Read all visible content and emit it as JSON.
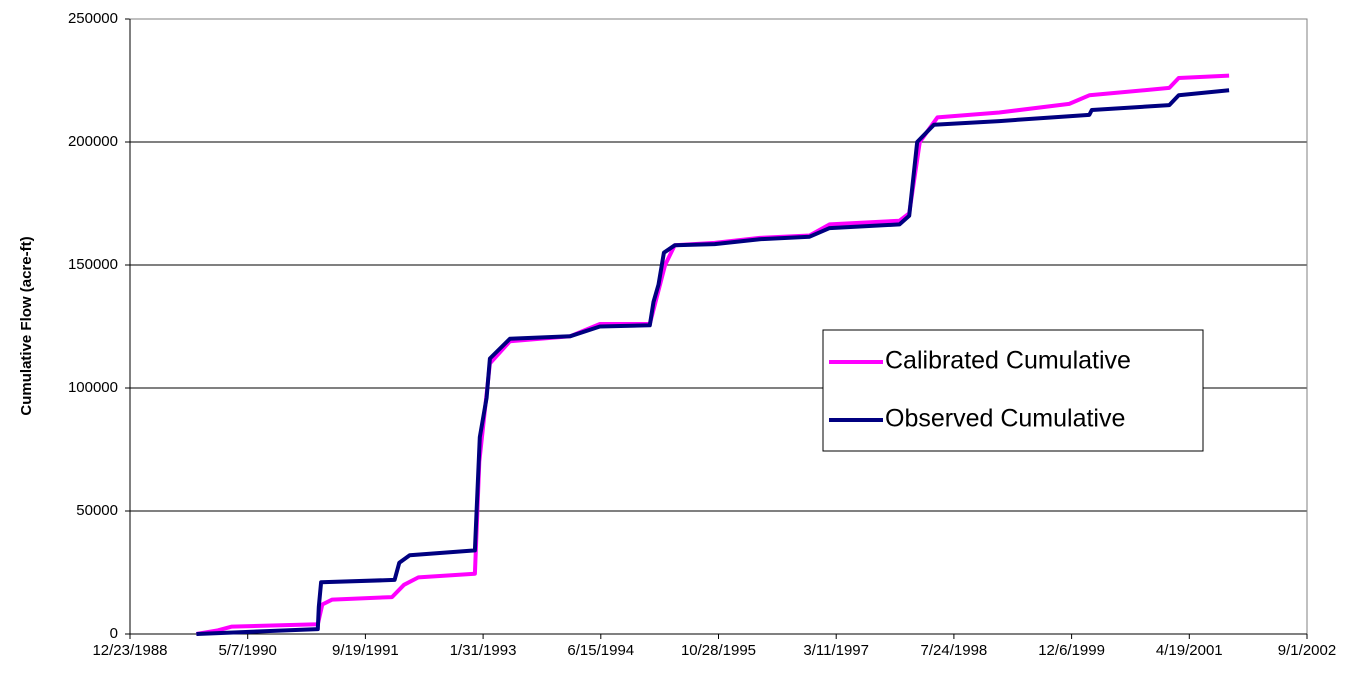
{
  "chart_data": {
    "type": "line",
    "y_axis_label": "Cumulative Flow (acre-ft)",
    "xlim": [
      "12/23/1988",
      "9/1/2002"
    ],
    "xticks": [
      "12/23/1988",
      "5/7/1990",
      "9/19/1991",
      "1/31/1993",
      "6/15/1994",
      "10/28/1995",
      "3/11/1997",
      "7/24/1998",
      "12/6/1999",
      "4/19/2001",
      "9/1/2002"
    ],
    "ylim": [
      0,
      250000
    ],
    "yticks": [
      0,
      50000,
      100000,
      150000,
      200000,
      250000
    ],
    "grid": true,
    "legend_position": "right",
    "series": [
      {
        "name": "Calibrated Cumulative",
        "color": "#ff00ff",
        "x": [
          "10/1/1989",
          "1/1/1990",
          "3/1/1990",
          "3/1/1991",
          "3/20/1991",
          "5/1/1991",
          "1/10/1992",
          "3/1/1992",
          "5/1/1992",
          "12/27/1992",
          "1/15/1993",
          "3/1/1993",
          "5/25/1993",
          "2/4/1994",
          "6/11/1994",
          "1/9/1995",
          "3/15/1995",
          "4/25/1995",
          "10/12/1995",
          "4/20/1996",
          "11/18/1996",
          "2/11/1997",
          "12/5/1997",
          "1/15/1998",
          "3/1/1998",
          "5/15/1998",
          "2/2/1999",
          "11/26/1999",
          "2/19/2000",
          "1/24/2001",
          "3/5/2001",
          "10/5/2001"
        ],
        "values": [
          0,
          1500,
          3000,
          4000,
          12000,
          14000,
          15000,
          20000,
          23000,
          24500,
          70000,
          110000,
          119000,
          121000,
          126000,
          126000,
          150000,
          158000,
          159000,
          161000,
          162000,
          166500,
          168000,
          171000,
          200000,
          210000,
          212000,
          215500,
          219000,
          222000,
          226000,
          227000
        ]
      },
      {
        "name": "Observed Cumulative",
        "color": "#000080",
        "x": [
          "10/1/1989",
          "3/1/1991",
          "3/5/1991",
          "3/15/1991",
          "1/21/1992",
          "2/10/1992",
          "3/25/1992",
          "12/27/1992",
          "1/17/1993",
          "2/15/1993",
          "3/1/1993",
          "5/25/1993",
          "2/4/1994",
          "6/11/1994",
          "1/9/1995",
          "1/25/1995",
          "2/15/1995",
          "3/10/1995",
          "4/25/1995",
          "10/12/1995",
          "4/20/1996",
          "11/18/1996",
          "2/11/1997",
          "12/5/1997",
          "1/15/1998",
          "2/18/1998",
          "4/30/1998",
          "2/2/1999",
          "11/26/1999",
          "2/19/2000",
          "3/1/2000",
          "1/24/2001",
          "3/5/2001",
          "10/5/2001"
        ],
        "values": [
          0,
          2000,
          11000,
          21000,
          22000,
          29000,
          32000,
          34000,
          80000,
          96000,
          112000,
          120000,
          121000,
          125000,
          125500,
          135000,
          142000,
          155000,
          158000,
          158500,
          160500,
          161500,
          165000,
          166500,
          170000,
          200000,
          207000,
          208500,
          210500,
          211000,
          213000,
          215000,
          219000,
          221000
        ]
      }
    ]
  }
}
